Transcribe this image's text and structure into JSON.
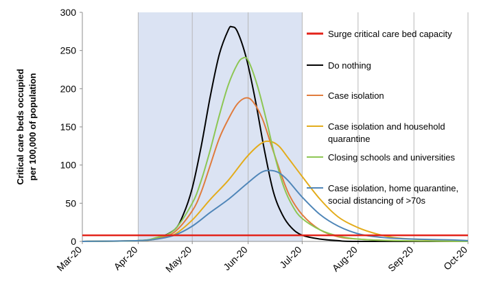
{
  "chart_data": {
    "type": "line",
    "title": "",
    "ylabel_lines": [
      "Critical care beds occupied",
      "per 100,000 of population"
    ],
    "xlabel": "",
    "ylim": [
      0,
      300
    ],
    "yticks": [
      0,
      50,
      100,
      150,
      200,
      250,
      300
    ],
    "x_ticks": [
      "Mar-20",
      "Apr-20",
      "May-20",
      "Jun-20",
      "Jul-20",
      "Aug-20",
      "Sep-20",
      "Oct-20"
    ],
    "x_tick_dates": [
      "2020-03-01",
      "2020-04-01",
      "2020-05-01",
      "2020-06-01",
      "2020-07-01",
      "2020-08-01",
      "2020-09-01",
      "2020-10-01"
    ],
    "xlim": [
      "2020-03-01",
      "2020-10-01"
    ],
    "grid": "vertical gridlines at month ticks",
    "shaded_region": {
      "start": "2020-04-01",
      "end": "2020-07-01",
      "color": "#dbe3f3"
    },
    "capacity_line": {
      "name": "Surge critical care bed capacity",
      "value": 8,
      "color": "#e32219"
    },
    "legend_placement": "right",
    "series": [
      {
        "name": "Do nothing",
        "color": "#000000",
        "points": [
          [
            "2020-03-01",
            0
          ],
          [
            "2020-04-01",
            1
          ],
          [
            "2020-04-11",
            4
          ],
          [
            "2020-04-21",
            15
          ],
          [
            "2020-04-26",
            35
          ],
          [
            "2020-05-01",
            70
          ],
          [
            "2020-05-06",
            125
          ],
          [
            "2020-05-11",
            190
          ],
          [
            "2020-05-16",
            245
          ],
          [
            "2020-05-21",
            277
          ],
          [
            "2020-05-23",
            281
          ],
          [
            "2020-05-26",
            275
          ],
          [
            "2020-05-31",
            240
          ],
          [
            "2020-06-05",
            185
          ],
          [
            "2020-06-10",
            120
          ],
          [
            "2020-06-15",
            65
          ],
          [
            "2020-06-20",
            35
          ],
          [
            "2020-06-25",
            18
          ],
          [
            "2020-07-01",
            8
          ],
          [
            "2020-07-11",
            3
          ],
          [
            "2020-07-21",
            1
          ],
          [
            "2020-08-01",
            0
          ],
          [
            "2020-10-01",
            0
          ]
        ]
      },
      {
        "name": "Case isolation",
        "color": "#e07b3c",
        "points": [
          [
            "2020-03-01",
            0
          ],
          [
            "2020-04-01",
            1
          ],
          [
            "2020-04-11",
            4
          ],
          [
            "2020-04-21",
            12
          ],
          [
            "2020-05-01",
            40
          ],
          [
            "2020-05-06",
            65
          ],
          [
            "2020-05-11",
            100
          ],
          [
            "2020-05-16",
            135
          ],
          [
            "2020-05-21",
            160
          ],
          [
            "2020-05-26",
            180
          ],
          [
            "2020-05-31",
            188
          ],
          [
            "2020-06-04",
            182
          ],
          [
            "2020-06-09",
            160
          ],
          [
            "2020-06-14",
            125
          ],
          [
            "2020-06-19",
            90
          ],
          [
            "2020-06-24",
            60
          ],
          [
            "2020-07-01",
            35
          ],
          [
            "2020-07-11",
            15
          ],
          [
            "2020-07-21",
            6
          ],
          [
            "2020-08-01",
            3
          ],
          [
            "2020-08-21",
            1
          ],
          [
            "2020-10-01",
            0
          ]
        ]
      },
      {
        "name": "Case isolation and household quarantine",
        "color": "#e3ac1b",
        "points": [
          [
            "2020-03-01",
            0
          ],
          [
            "2020-04-01",
            1
          ],
          [
            "2020-04-11",
            3
          ],
          [
            "2020-04-21",
            9
          ],
          [
            "2020-05-01",
            28
          ],
          [
            "2020-05-11",
            55
          ],
          [
            "2020-05-21",
            80
          ],
          [
            "2020-05-31",
            110
          ],
          [
            "2020-06-08",
            128
          ],
          [
            "2020-06-13",
            131
          ],
          [
            "2020-06-18",
            125
          ],
          [
            "2020-06-23",
            110
          ],
          [
            "2020-07-01",
            85
          ],
          [
            "2020-07-11",
            55
          ],
          [
            "2020-07-21",
            32
          ],
          [
            "2020-08-01",
            18
          ],
          [
            "2020-08-11",
            10
          ],
          [
            "2020-08-21",
            5
          ],
          [
            "2020-09-01",
            3
          ],
          [
            "2020-09-21",
            1
          ],
          [
            "2020-10-01",
            1
          ]
        ]
      },
      {
        "name": "Closing schools and universities",
        "color": "#8cc653",
        "points": [
          [
            "2020-03-01",
            0
          ],
          [
            "2020-04-01",
            1
          ],
          [
            "2020-04-11",
            5
          ],
          [
            "2020-04-21",
            15
          ],
          [
            "2020-05-01",
            50
          ],
          [
            "2020-05-06",
            80
          ],
          [
            "2020-05-11",
            120
          ],
          [
            "2020-05-16",
            165
          ],
          [
            "2020-05-21",
            205
          ],
          [
            "2020-05-26",
            232
          ],
          [
            "2020-05-29",
            240
          ],
          [
            "2020-06-01",
            237
          ],
          [
            "2020-06-06",
            205
          ],
          [
            "2020-06-11",
            160
          ],
          [
            "2020-06-16",
            110
          ],
          [
            "2020-06-21",
            70
          ],
          [
            "2020-06-26",
            45
          ],
          [
            "2020-07-01",
            30
          ],
          [
            "2020-07-11",
            15
          ],
          [
            "2020-07-21",
            7
          ],
          [
            "2020-08-01",
            3
          ],
          [
            "2020-08-21",
            1
          ],
          [
            "2020-10-01",
            0
          ]
        ]
      },
      {
        "name": "Case isolation, home quarantine, social distancing of >70s",
        "color": "#4f86b8",
        "points": [
          [
            "2020-03-01",
            0
          ],
          [
            "2020-04-01",
            1
          ],
          [
            "2020-04-11",
            3
          ],
          [
            "2020-04-21",
            8
          ],
          [
            "2020-05-01",
            20
          ],
          [
            "2020-05-11",
            38
          ],
          [
            "2020-05-21",
            55
          ],
          [
            "2020-05-31",
            75
          ],
          [
            "2020-06-08",
            90
          ],
          [
            "2020-06-13",
            93
          ],
          [
            "2020-06-18",
            90
          ],
          [
            "2020-06-23",
            80
          ],
          [
            "2020-07-01",
            58
          ],
          [
            "2020-07-11",
            35
          ],
          [
            "2020-07-21",
            20
          ],
          [
            "2020-08-01",
            10
          ],
          [
            "2020-08-11",
            6
          ],
          [
            "2020-08-21",
            4
          ],
          [
            "2020-09-01",
            3
          ],
          [
            "2020-09-21",
            2
          ],
          [
            "2020-10-01",
            1
          ]
        ]
      }
    ],
    "legend": [
      {
        "lines": [
          "Surge critical care bed capacity"
        ],
        "color": "#e32219",
        "key": "capacity"
      },
      {
        "lines": [
          "Do nothing"
        ],
        "color": "#000000"
      },
      {
        "lines": [
          "Case isolation"
        ],
        "color": "#e07b3c"
      },
      {
        "lines": [
          "Case isolation and household",
          "quarantine"
        ],
        "color": "#e3ac1b"
      },
      {
        "lines": [
          "Closing schools and universities"
        ],
        "color": "#8cc653"
      },
      {
        "lines": [
          "Case isolation, home quarantine,",
          "social distancing of >70s"
        ],
        "color": "#4f86b8"
      }
    ]
  }
}
